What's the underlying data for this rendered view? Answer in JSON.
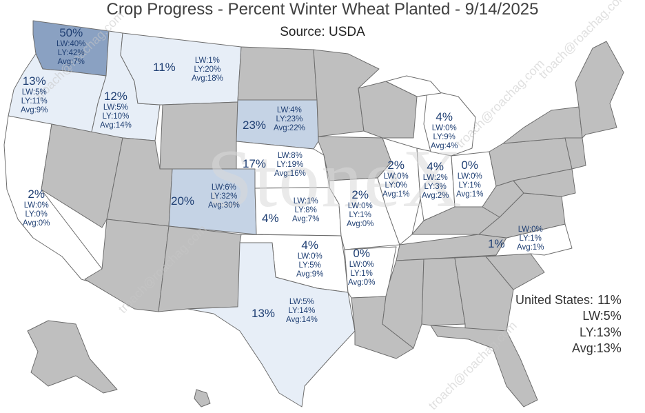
{
  "title": "Crop Progress - Percent Winter Wheat Planted - 9/14/2025",
  "subtitle": "Source: USDA",
  "watermark": "troach@roachag.com",
  "brand_watermark": "StoneX",
  "colors": {
    "tier_high": "#8aa1c2",
    "tier_mid": "#c5d3e5",
    "tier_low": "#e7eef7",
    "tier_zero": "#ffffff",
    "no_data": "#bfbfbf",
    "border": "#6d6d6d",
    "label": "#1f3f73"
  },
  "states": {
    "WA": {
      "pct": "50%",
      "lw": "LW:40%",
      "ly": "LY:42%",
      "avg": "Avg:7%"
    },
    "OR": {
      "pct": "13%",
      "lw": "LW:5%",
      "ly": "LY:11%",
      "avg": "Avg:9%"
    },
    "ID": {
      "pct": "12%",
      "lw": "LW:5%",
      "ly": "LY:10%",
      "avg": "Avg:14%"
    },
    "MT": {
      "pct": "11%",
      "lw": "LW:1%",
      "ly": "LY:20%",
      "avg": "Avg:18%"
    },
    "CA": {
      "pct": "2%",
      "lw": "LW:0%",
      "ly": "LY:0%",
      "avg": "Avg:0%"
    },
    "SD": {
      "pct": "23%",
      "lw": "LW:4%",
      "ly": "LY:23%",
      "avg": "Avg:22%"
    },
    "NE": {
      "pct": "17%",
      "lw": "LW:8%",
      "ly": "LY:19%",
      "avg": "Avg:16%"
    },
    "CO": {
      "pct": "20%",
      "lw": "LW:6%",
      "ly": "LY:32%",
      "avg": "Avg:30%"
    },
    "KS": {
      "pct": "4%",
      "lw": "LW:1%",
      "ly": "LY:8%",
      "avg": "Avg:7%"
    },
    "OK": {
      "pct": "4%",
      "lw": "LW:0%",
      "ly": "LY:5%",
      "avg": "Avg:9%"
    },
    "TX": {
      "pct": "13%",
      "lw": "LW:5%",
      "ly": "LY:14%",
      "avg": "Avg:14%"
    },
    "MO": {
      "pct": "2%",
      "lw": "LW:0%",
      "ly": "LY:1%",
      "avg": "Avg:0%"
    },
    "AR": {
      "pct": "0%",
      "lw": "LW:0%",
      "ly": "LY:1%",
      "avg": "Avg:0%"
    },
    "IL": {
      "pct": "2%",
      "lw": "LW:0%",
      "ly": "LY:0%",
      "avg": "Avg:1%"
    },
    "IN": {
      "pct": "4%",
      "lw": "LW:2%",
      "ly": "LY:3%",
      "avg": "Avg:2%"
    },
    "OH": {
      "pct": "0%",
      "lw": "LW:0%",
      "ly": "LY:1%",
      "avg": "Avg:1%"
    },
    "MI": {
      "pct": "4%",
      "lw": "LW:0%",
      "ly": "LY:9%",
      "avg": "Avg:4%"
    },
    "NC": {
      "pct": "1%",
      "lw": "LW:0%",
      "ly": "LY:1%",
      "avg": "Avg:1%"
    }
  },
  "us_summary": {
    "label": "United States:",
    "pct": "11%",
    "lw": "LW:5%",
    "ly": "LY:13%",
    "avg": "Avg:13%"
  }
}
